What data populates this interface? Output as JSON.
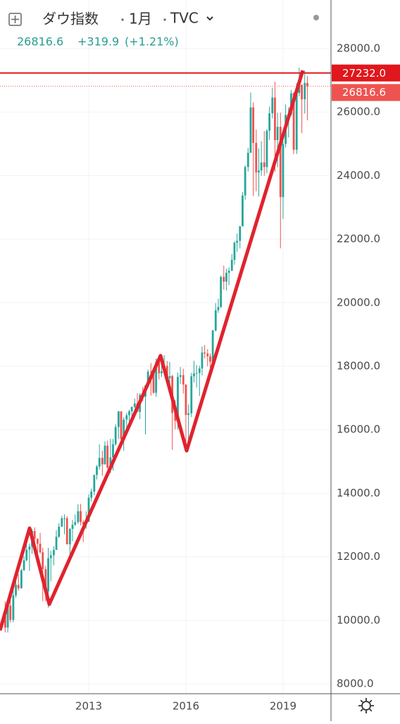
{
  "chart_data": {
    "type": "candlestick",
    "title": "ダウ指数",
    "interval": "1月",
    "source": "TVC",
    "last_price": {
      "value": 26816.6,
      "label": "26816.6"
    },
    "change": {
      "value": 319.9,
      "label": "+319.9"
    },
    "change_pct": {
      "value": 1.21,
      "label": "(+1.21%)"
    },
    "level_line": {
      "value": 27232,
      "label": "27232.0",
      "color": "#e0171c"
    },
    "up_color": "#26a69a",
    "down_color": "#ef5350",
    "grid": true,
    "xlim": [
      2010.26,
      2020.48
    ],
    "xticks": [
      2013,
      2016,
      2019
    ],
    "ylim": [
      7690,
      29530
    ],
    "yticks": [
      {
        "value": 8000,
        "label": "8000.0"
      },
      {
        "value": 10000,
        "label": "10000.0"
      },
      {
        "value": 12000,
        "label": "12000.0"
      },
      {
        "value": 14000,
        "label": "14000.0"
      },
      {
        "value": 16000,
        "label": "16000.0"
      },
      {
        "value": 18000,
        "label": "18000.0"
      },
      {
        "value": 20000,
        "label": "20000.0"
      },
      {
        "value": 22000,
        "label": "22000.0"
      },
      {
        "value": 24000,
        "label": "24000.0"
      },
      {
        "value": 26000,
        "label": "26000.0"
      },
      {
        "value": 28000,
        "label": "28000.0"
      }
    ],
    "candles": [
      [
        2010.42,
        10137,
        10595,
        9617,
        9774
      ],
      [
        2010.5,
        9774,
        10581,
        9614,
        10466
      ],
      [
        2010.58,
        10466,
        10720,
        9936,
        10015
      ],
      [
        2010.67,
        10015,
        10948,
        9941,
        10788
      ],
      [
        2010.75,
        10788,
        11245,
        10711,
        11118
      ],
      [
        2010.83,
        11118,
        11451,
        10929,
        11006
      ],
      [
        2010.92,
        11006,
        11625,
        11007,
        11578
      ],
      [
        2011,
        11578,
        12020,
        11555,
        11892
      ],
      [
        2011.08,
        11892,
        12391,
        11860,
        12226
      ],
      [
        2011.17,
        12226,
        12419,
        11555,
        12320
      ],
      [
        2011.25,
        12320,
        12876,
        12093,
        12811
      ],
      [
        2011.33,
        12811,
        12929,
        12311,
        12570
      ],
      [
        2011.42,
        12570,
        12570,
        11862,
        12414
      ],
      [
        2011.5,
        12414,
        12753,
        12093,
        12143
      ],
      [
        2011.58,
        12143,
        12285,
        10604,
        11614
      ],
      [
        2011.67,
        11614,
        11716,
        10597,
        10913
      ],
      [
        2011.75,
        10913,
        12284,
        10404,
        11955
      ],
      [
        2011.83,
        11955,
        12188,
        11231,
        12046
      ],
      [
        2011.92,
        12046,
        12330,
        11735,
        12218
      ],
      [
        2012,
        12218,
        12842,
        12218,
        12633
      ],
      [
        2012.08,
        12633,
        13056,
        12594,
        12952
      ],
      [
        2012.17,
        12952,
        13290,
        12940,
        13212
      ],
      [
        2012.25,
        13212,
        13338,
        12710,
        13214
      ],
      [
        2012.33,
        13214,
        13280,
        12391,
        12393
      ],
      [
        2012.42,
        12393,
        12899,
        12035,
        12880
      ],
      [
        2012.5,
        12880,
        13160,
        12492,
        13009
      ],
      [
        2012.58,
        13009,
        13330,
        12979,
        13091
      ],
      [
        2012.67,
        13091,
        13653,
        13043,
        13437
      ],
      [
        2012.75,
        13437,
        13662,
        12989,
        13096
      ],
      [
        2012.83,
        13096,
        13155,
        12471,
        13026
      ],
      [
        2012.92,
        13026,
        13430,
        12883,
        13104
      ],
      [
        2013,
        13104,
        13969,
        13104,
        13861
      ],
      [
        2013.08,
        13861,
        14150,
        13749,
        14054
      ],
      [
        2013.17,
        14054,
        14585,
        13938,
        14579
      ],
      [
        2013.25,
        14579,
        14888,
        14434,
        14840
      ],
      [
        2013.33,
        14840,
        15542,
        14746,
        15116
      ],
      [
        2013.42,
        15116,
        15340,
        14551,
        14910
      ],
      [
        2013.5,
        14910,
        15634,
        14910,
        15500
      ],
      [
        2013.58,
        15500,
        15658,
        14760,
        14810
      ],
      [
        2013.67,
        14810,
        15710,
        14640,
        15130
      ],
      [
        2013.75,
        15130,
        15710,
        14720,
        15546
      ],
      [
        2013.83,
        15546,
        16174,
        15500,
        16086
      ],
      [
        2013.92,
        16086,
        16588,
        15703,
        16577
      ],
      [
        2014,
        16577,
        16588,
        15699,
        15699
      ],
      [
        2014.08,
        15699,
        16398,
        15340,
        16322
      ],
      [
        2014.17,
        16322,
        16532,
        15937,
        16458
      ],
      [
        2014.25,
        16458,
        16632,
        16015,
        16581
      ],
      [
        2014.33,
        16581,
        16735,
        16334,
        16717
      ],
      [
        2014.42,
        16717,
        16978,
        16675,
        16827
      ],
      [
        2014.5,
        16827,
        17151,
        16563,
        16563
      ],
      [
        2014.58,
        16563,
        17154,
        16333,
        17098
      ],
      [
        2014.67,
        17098,
        17350,
        16901,
        17043
      ],
      [
        2014.75,
        17043,
        17395,
        15855,
        17391
      ],
      [
        2014.83,
        17391,
        17894,
        17392,
        17828
      ],
      [
        2014.92,
        17828,
        18103,
        17068,
        17823
      ],
      [
        2015,
        17823,
        17951,
        17136,
        17165
      ],
      [
        2015.08,
        17165,
        18244,
        17037,
        18133
      ],
      [
        2015.17,
        18133,
        18289,
        17585,
        17776
      ],
      [
        2015.25,
        17776,
        18175,
        17665,
        17841
      ],
      [
        2015.33,
        17841,
        18351,
        17849,
        18011
      ],
      [
        2015.42,
        18011,
        18168,
        17597,
        17620
      ],
      [
        2015.5,
        17620,
        18137,
        17399,
        17690
      ],
      [
        2015.58,
        17690,
        17732,
        15370,
        16528
      ],
      [
        2015.67,
        16528,
        16933,
        16013,
        16285
      ],
      [
        2015.75,
        16285,
        17799,
        16013,
        17664
      ],
      [
        2015.83,
        17664,
        17977,
        17444,
        17720
      ],
      [
        2015.92,
        17720,
        17923,
        17139,
        17425
      ],
      [
        2016,
        17425,
        17425,
        15451,
        16466
      ],
      [
        2016.08,
        16466,
        16795,
        15503,
        16517
      ],
      [
        2016.17,
        16517,
        17790,
        16401,
        17685
      ],
      [
        2016.25,
        17685,
        18168,
        17484,
        17774
      ],
      [
        2016.33,
        17774,
        18036,
        17331,
        17787
      ],
      [
        2016.42,
        17787,
        18017,
        17063,
        17930
      ],
      [
        2016.5,
        17930,
        18622,
        17713,
        18432
      ],
      [
        2016.58,
        18432,
        18668,
        18247,
        18401
      ],
      [
        2016.67,
        18401,
        18534,
        17993,
        18308
      ],
      [
        2016.75,
        18308,
        18399,
        17959,
        18142
      ],
      [
        2016.83,
        18142,
        19152,
        17884,
        19124
      ],
      [
        2016.92,
        19124,
        19987,
        19098,
        19763
      ],
      [
        2017,
        19763,
        20126,
        19677,
        19864
      ],
      [
        2017.08,
        19864,
        20851,
        19831,
        20812
      ],
      [
        2017.17,
        20812,
        21169,
        20412,
        20663
      ],
      [
        2017.25,
        20663,
        21071,
        20379,
        20941
      ],
      [
        2017.33,
        20941,
        21112,
        20553,
        21009
      ],
      [
        2017.42,
        21009,
        21535,
        20994,
        21350
      ],
      [
        2017.5,
        21350,
        21929,
        21197,
        21891
      ],
      [
        2017.58,
        21891,
        22180,
        21600,
        21948
      ],
      [
        2017.67,
        21948,
        22420,
        21709,
        22405
      ],
      [
        2017.75,
        22405,
        23485,
        22416,
        23377
      ],
      [
        2017.83,
        23377,
        24328,
        23242,
        24272
      ],
      [
        2017.92,
        24272,
        24876,
        24131,
        24719
      ],
      [
        2018,
        24719,
        26617,
        24741,
        26149
      ],
      [
        2018.08,
        26149,
        26307,
        23360,
        25029
      ],
      [
        2018.17,
        25029,
        25450,
        23509,
        24103
      ],
      [
        2018.25,
        24103,
        24858,
        23344,
        24163
      ],
      [
        2018.33,
        24163,
        25087,
        23997,
        24416
      ],
      [
        2018.42,
        24416,
        25402,
        23997,
        24271
      ],
      [
        2018.5,
        24271,
        25467,
        24078,
        25415
      ],
      [
        2018.58,
        25415,
        26168,
        25124,
        25965
      ],
      [
        2018.67,
        25965,
        26769,
        25803,
        26458
      ],
      [
        2018.75,
        26458,
        26952,
        24123,
        25116
      ],
      [
        2018.83,
        25116,
        25980,
        24268,
        25538
      ],
      [
        2018.92,
        25538,
        25980,
        21713,
        23327
      ],
      [
        2019,
        23327,
        25075,
        22639,
        24999
      ],
      [
        2019.08,
        24999,
        26241,
        24884,
        25916
      ],
      [
        2019.17,
        25916,
        26155,
        25208,
        25929
      ],
      [
        2019.25,
        25929,
        26696,
        25880,
        26593
      ],
      [
        2019.33,
        26593,
        26631,
        24680,
        24815
      ],
      [
        2019.42,
        24815,
        26907,
        24680,
        26600
      ],
      [
        2019.5,
        26600,
        27399,
        26500,
        26864
      ],
      [
        2019.58,
        26864,
        26864,
        25340,
        26403
      ],
      [
        2019.67,
        26403,
        27306,
        25953,
        26917
      ],
      [
        2019.75,
        26917,
        27135,
        25744,
        26816.6
      ]
    ]
  }
}
